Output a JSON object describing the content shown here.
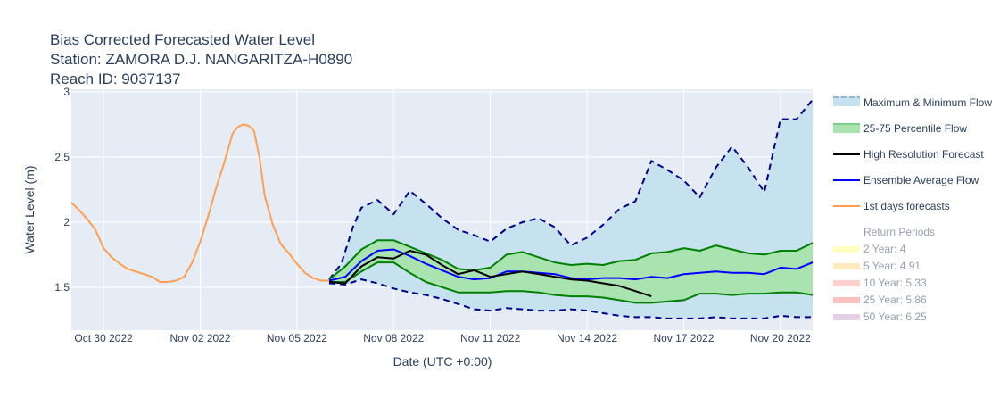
{
  "chart_data": {
    "type": "line",
    "title_lines": [
      "Bias Corrected Forecasted Water Level",
      "Station: ZAMORA D.J. NANGARITZA-H0890",
      "Reach ID: 9037137"
    ],
    "xlabel": "Date (UTC +0:00)",
    "ylabel": "Water Level (m)",
    "x_axis": "date",
    "xlim": [
      "2022-10-29",
      "2022-11-21"
    ],
    "ylim": [
      1.17,
      3.02
    ],
    "x_tick_dates": [
      "2022-10-30",
      "2022-11-02",
      "2022-11-05",
      "2022-11-08",
      "2022-11-11",
      "2022-11-14",
      "2022-11-17",
      "2022-11-20"
    ],
    "x_tick_labels": [
      "Oct 30 2022",
      "Nov 02 2022",
      "Nov 05 2022",
      "Nov 08 2022",
      "Nov 11 2022",
      "Nov 14 2022",
      "Nov 17 2022",
      "Nov 20 2022"
    ],
    "y_ticks": [
      1.5,
      2,
      2.5,
      3
    ],
    "y_tick_labels": [
      "1.5",
      "2",
      "2.5",
      "3"
    ],
    "grid": true,
    "legend_position": "right",
    "colors": {
      "plot_bg": "#e5ecf6",
      "grid": "#ffffff",
      "maxmin_fill": "#c6e2ee",
      "maxmin_line": "#00008b",
      "pct_fill": "#a8e3b0",
      "pct_line": "#008000",
      "hires": "#000000",
      "ensemble": "#0000ff",
      "firstday": "#ff9e4f",
      "rp2": "#ffff7f",
      "rp5": "#ffd67f",
      "rp10": "#ff9f9f",
      "rp25": "#ff7f7f",
      "rp50": "#c9a0c9"
    },
    "legend": {
      "maxmin": "Maximum & Minimum Flow",
      "pct": "25-75 Percentile Flow",
      "hires": "High Resolution Forecast",
      "ensemble": "Ensemble Average Flow",
      "firstday": "1st days forecasts",
      "rp_header": "Return Periods",
      "rp2": "2 Year: 4",
      "rp5": "5 Year: 4.91",
      "rp10": "10 Year: 5.33",
      "rp25": "25 Year: 5.86",
      "rp50": "50 Year: 6.25"
    },
    "series": {
      "firstday": {
        "x": [
          "2022-10-29T00:00",
          "2022-10-29T06:00",
          "2022-10-29T12:00",
          "2022-10-29T18:00",
          "2022-10-30T00:00",
          "2022-10-30T06:00",
          "2022-10-30T12:00",
          "2022-10-30T18:00",
          "2022-10-31T00:00",
          "2022-10-31T06:00",
          "2022-10-31T12:00",
          "2022-10-31T18:00",
          "2022-11-01T00:00",
          "2022-11-01T06:00",
          "2022-11-01T12:00",
          "2022-11-01T18:00",
          "2022-11-02T00:00",
          "2022-11-02T06:00",
          "2022-11-02T12:00",
          "2022-11-02T18:00",
          "2022-11-03T00:00",
          "2022-11-03T04:00",
          "2022-11-03T08:00",
          "2022-11-03T12:00",
          "2022-11-03T16:00",
          "2022-11-03T20:00",
          "2022-11-04T00:00",
          "2022-11-04T06:00",
          "2022-11-04T12:00",
          "2022-11-04T18:00",
          "2022-11-05T00:00",
          "2022-11-05T06:00",
          "2022-11-05T12:00",
          "2022-11-05T18:00",
          "2022-11-06T00:00"
        ],
        "y": [
          2.15,
          2.09,
          2.02,
          1.94,
          1.8,
          1.73,
          1.68,
          1.64,
          1.62,
          1.6,
          1.58,
          1.54,
          1.54,
          1.55,
          1.58,
          1.69,
          1.85,
          2.05,
          2.27,
          2.46,
          2.68,
          2.73,
          2.75,
          2.74,
          2.7,
          2.5,
          2.2,
          1.98,
          1.83,
          1.76,
          1.68,
          1.61,
          1.57,
          1.55,
          1.55
        ]
      },
      "ensemble": {
        "x": [
          "2022-11-06T00:00",
          "2022-11-06T12:00",
          "2022-11-07T00:00",
          "2022-11-07T12:00",
          "2022-11-08T00:00",
          "2022-11-08T12:00",
          "2022-11-09T00:00",
          "2022-11-09T12:00",
          "2022-11-10T00:00",
          "2022-11-10T12:00",
          "2022-11-11T00:00",
          "2022-11-11T12:00",
          "2022-11-12T00:00",
          "2022-11-12T12:00",
          "2022-11-13T00:00",
          "2022-11-13T12:00",
          "2022-11-14T00:00",
          "2022-11-14T12:00",
          "2022-11-15T00:00",
          "2022-11-15T12:00",
          "2022-11-16T00:00",
          "2022-11-16T12:00",
          "2022-11-17T00:00",
          "2022-11-17T12:00",
          "2022-11-18T00:00",
          "2022-11-18T12:00",
          "2022-11-19T00:00",
          "2022-11-19T12:00",
          "2022-11-20T00:00",
          "2022-11-20T12:00",
          "2022-11-21T00:00"
        ],
        "y": [
          1.55,
          1.58,
          1.7,
          1.78,
          1.79,
          1.74,
          1.68,
          1.63,
          1.58,
          1.56,
          1.57,
          1.62,
          1.62,
          1.61,
          1.6,
          1.57,
          1.56,
          1.57,
          1.57,
          1.56,
          1.58,
          1.57,
          1.6,
          1.61,
          1.62,
          1.61,
          1.61,
          1.6,
          1.65,
          1.64,
          1.69
        ]
      },
      "hires": {
        "x": [
          "2022-11-06T00:00",
          "2022-11-06T12:00",
          "2022-11-07T00:00",
          "2022-11-07T12:00",
          "2022-11-08T00:00",
          "2022-11-08T12:00",
          "2022-11-09T00:00",
          "2022-11-09T12:00",
          "2022-11-10T00:00",
          "2022-11-10T12:00",
          "2022-11-11T00:00",
          "2022-11-11T12:00",
          "2022-11-12T00:00",
          "2022-11-12T12:00",
          "2022-11-13T00:00",
          "2022-11-13T12:00",
          "2022-11-14T00:00",
          "2022-11-14T12:00",
          "2022-11-15T00:00",
          "2022-11-15T12:00",
          "2022-11-16T00:00"
        ],
        "y": [
          1.54,
          1.53,
          1.66,
          1.73,
          1.72,
          1.78,
          1.75,
          1.67,
          1.6,
          1.63,
          1.58,
          1.6,
          1.62,
          1.6,
          1.58,
          1.56,
          1.55,
          1.53,
          1.51,
          1.47,
          1.43
        ]
      },
      "pct_upper": {
        "x": [
          "2022-11-06T00:00",
          "2022-11-06T12:00",
          "2022-11-07T00:00",
          "2022-11-07T12:00",
          "2022-11-08T00:00",
          "2022-11-08T12:00",
          "2022-11-09T00:00",
          "2022-11-09T12:00",
          "2022-11-10T00:00",
          "2022-11-10T12:00",
          "2022-11-11T00:00",
          "2022-11-11T12:00",
          "2022-11-12T00:00",
          "2022-11-12T12:00",
          "2022-11-13T00:00",
          "2022-11-13T12:00",
          "2022-11-14T00:00",
          "2022-11-14T12:00",
          "2022-11-15T00:00",
          "2022-11-15T12:00",
          "2022-11-16T00:00",
          "2022-11-16T12:00",
          "2022-11-17T00:00",
          "2022-11-17T12:00",
          "2022-11-18T00:00",
          "2022-11-18T12:00",
          "2022-11-19T00:00",
          "2022-11-19T12:00",
          "2022-11-20T00:00",
          "2022-11-20T12:00",
          "2022-11-21T00:00"
        ],
        "y": [
          1.56,
          1.66,
          1.79,
          1.86,
          1.86,
          1.81,
          1.76,
          1.71,
          1.64,
          1.63,
          1.65,
          1.75,
          1.77,
          1.73,
          1.69,
          1.67,
          1.68,
          1.67,
          1.7,
          1.71,
          1.76,
          1.77,
          1.8,
          1.78,
          1.82,
          1.79,
          1.76,
          1.75,
          1.78,
          1.78,
          1.84
        ]
      },
      "pct_lower": {
        "x": [
          "2022-11-06T00:00",
          "2022-11-06T12:00",
          "2022-11-07T00:00",
          "2022-11-07T12:00",
          "2022-11-08T00:00",
          "2022-11-08T12:00",
          "2022-11-09T00:00",
          "2022-11-09T12:00",
          "2022-11-10T00:00",
          "2022-11-10T12:00",
          "2022-11-11T00:00",
          "2022-11-11T12:00",
          "2022-11-12T00:00",
          "2022-11-12T12:00",
          "2022-11-13T00:00",
          "2022-11-13T12:00",
          "2022-11-14T00:00",
          "2022-11-14T12:00",
          "2022-11-15T00:00",
          "2022-11-15T12:00",
          "2022-11-16T00:00",
          "2022-11-16T12:00",
          "2022-11-17T00:00",
          "2022-11-17T12:00",
          "2022-11-18T00:00",
          "2022-11-18T12:00",
          "2022-11-19T00:00",
          "2022-11-19T12:00",
          "2022-11-20T00:00",
          "2022-11-20T12:00",
          "2022-11-21T00:00"
        ],
        "y": [
          1.54,
          1.54,
          1.62,
          1.69,
          1.69,
          1.61,
          1.54,
          1.5,
          1.46,
          1.46,
          1.46,
          1.47,
          1.47,
          1.46,
          1.44,
          1.43,
          1.43,
          1.42,
          1.4,
          1.38,
          1.38,
          1.39,
          1.4,
          1.45,
          1.45,
          1.44,
          1.45,
          1.45,
          1.46,
          1.46,
          1.44
        ]
      },
      "max": {
        "x": [
          "2022-11-06T00:00",
          "2022-11-06T09:00",
          "2022-11-06T18:00",
          "2022-11-07T00:00",
          "2022-11-07T12:00",
          "2022-11-08T00:00",
          "2022-11-08T12:00",
          "2022-11-09T00:00",
          "2022-11-09T12:00",
          "2022-11-10T00:00",
          "2022-11-10T12:00",
          "2022-11-11T00:00",
          "2022-11-11T12:00",
          "2022-11-12T00:00",
          "2022-11-12T12:00",
          "2022-11-13T00:00",
          "2022-11-13T12:00",
          "2022-11-14T00:00",
          "2022-11-14T12:00",
          "2022-11-15T00:00",
          "2022-11-15T12:00",
          "2022-11-16T00:00",
          "2022-11-16T12:00",
          "2022-11-17T00:00",
          "2022-11-17T12:00",
          "2022-11-18T00:00",
          "2022-11-18T12:00",
          "2022-11-19T00:00",
          "2022-11-19T12:00",
          "2022-11-20T00:00",
          "2022-11-20T12:00",
          "2022-11-21T00:00"
        ],
        "y": [
          1.56,
          1.68,
          1.97,
          2.11,
          2.17,
          2.06,
          2.24,
          2.14,
          2.03,
          1.94,
          1.9,
          1.85,
          1.95,
          2.0,
          2.03,
          1.96,
          1.82,
          1.88,
          1.98,
          2.1,
          2.16,
          2.47,
          2.4,
          2.32,
          2.19,
          2.42,
          2.58,
          2.42,
          2.23,
          2.79,
          2.79,
          2.94
        ]
      },
      "min": {
        "x": [
          "2022-11-06T00:00",
          "2022-11-06T12:00",
          "2022-11-07T00:00",
          "2022-11-07T12:00",
          "2022-11-08T00:00",
          "2022-11-08T12:00",
          "2022-11-09T00:00",
          "2022-11-09T12:00",
          "2022-11-10T00:00",
          "2022-11-10T12:00",
          "2022-11-11T00:00",
          "2022-11-11T12:00",
          "2022-11-12T00:00",
          "2022-11-12T12:00",
          "2022-11-13T00:00",
          "2022-11-13T12:00",
          "2022-11-14T00:00",
          "2022-11-14T12:00",
          "2022-11-15T00:00",
          "2022-11-15T12:00",
          "2022-11-16T00:00",
          "2022-11-16T12:00",
          "2022-11-17T00:00",
          "2022-11-17T12:00",
          "2022-11-18T00:00",
          "2022-11-18T12:00",
          "2022-11-19T00:00",
          "2022-11-19T12:00",
          "2022-11-20T00:00",
          "2022-11-20T12:00",
          "2022-11-21T00:00"
        ],
        "y": [
          1.53,
          1.52,
          1.56,
          1.53,
          1.49,
          1.46,
          1.44,
          1.41,
          1.37,
          1.33,
          1.32,
          1.34,
          1.33,
          1.32,
          1.32,
          1.33,
          1.32,
          1.3,
          1.28,
          1.27,
          1.27,
          1.26,
          1.26,
          1.26,
          1.27,
          1.26,
          1.26,
          1.26,
          1.28,
          1.27,
          1.27
        ]
      }
    }
  }
}
